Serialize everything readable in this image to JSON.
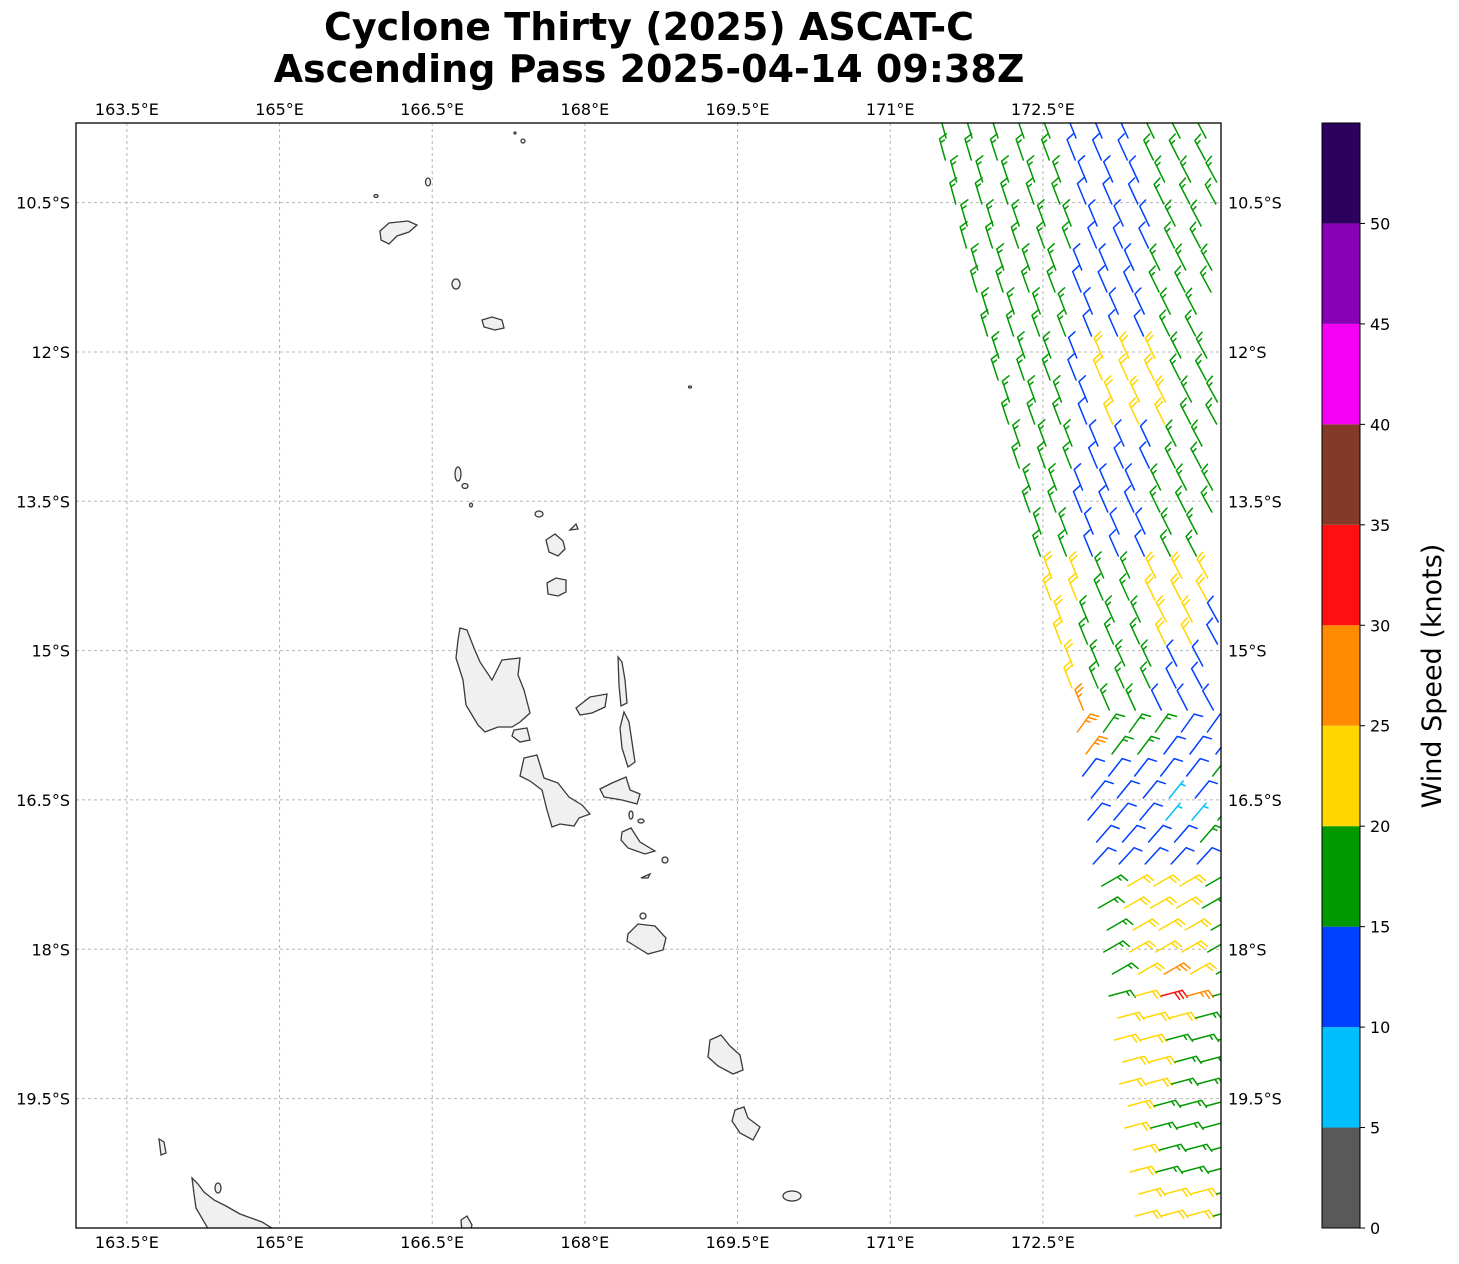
{
  "title": {
    "line1": "Cyclone Thirty (2025) ASCAT-C",
    "line2": "Ascending Pass 2025-04-14 09:38Z"
  },
  "map": {
    "lon_range": [
      163,
      174.25
    ],
    "lat_range": [
      -20.8,
      -9.7
    ],
    "lon_ticks": [
      {
        "value": 163.5,
        "label": "163.5°E"
      },
      {
        "value": 165.0,
        "label": "165°E"
      },
      {
        "value": 166.5,
        "label": "166.5°E"
      },
      {
        "value": 168.0,
        "label": "168°E"
      },
      {
        "value": 169.5,
        "label": "169.5°E"
      },
      {
        "value": 171.0,
        "label": "171°E"
      },
      {
        "value": 172.5,
        "label": "172.5°E"
      }
    ],
    "lat_ticks": [
      {
        "value": -10.5,
        "label": "10.5°S"
      },
      {
        "value": -12.0,
        "label": "12°S"
      },
      {
        "value": -13.5,
        "label": "13.5°S"
      },
      {
        "value": -15.0,
        "label": "15°S"
      },
      {
        "value": -16.5,
        "label": "16.5°S"
      },
      {
        "value": -18.0,
        "label": "18°S"
      },
      {
        "value": -19.5,
        "label": "19.5°S"
      }
    ],
    "gridlines": true,
    "colors": {
      "coastline": "#3a3a3a",
      "land": "#f0f0f0",
      "grid": "#b5b5b5"
    }
  },
  "colorbar": {
    "title": "Wind Speed (knots)",
    "bins": [
      {
        "from": 0,
        "to": 5,
        "color": "#595959"
      },
      {
        "from": 5,
        "to": 10,
        "color": "#00bfff"
      },
      {
        "from": 10,
        "to": 15,
        "color": "#0040ff"
      },
      {
        "from": 15,
        "to": 20,
        "color": "#009a00"
      },
      {
        "from": 20,
        "to": 25,
        "color": "#ffd700"
      },
      {
        "from": 25,
        "to": 30,
        "color": "#ff8c00"
      },
      {
        "from": 30,
        "to": 35,
        "color": "#ff0f0f"
      },
      {
        "from": 35,
        "to": 40,
        "color": "#833a28"
      },
      {
        "from": 40,
        "to": 45,
        "color": "#f500f5"
      },
      {
        "from": 45,
        "to": 50,
        "color": "#8700b5"
      },
      {
        "from": 50,
        "to": 55,
        "color": "#2d005e"
      }
    ],
    "tick_labels": [
      "0",
      "5",
      "10",
      "15",
      "20",
      "25",
      "30",
      "35",
      "40",
      "45",
      "50"
    ]
  }
}
